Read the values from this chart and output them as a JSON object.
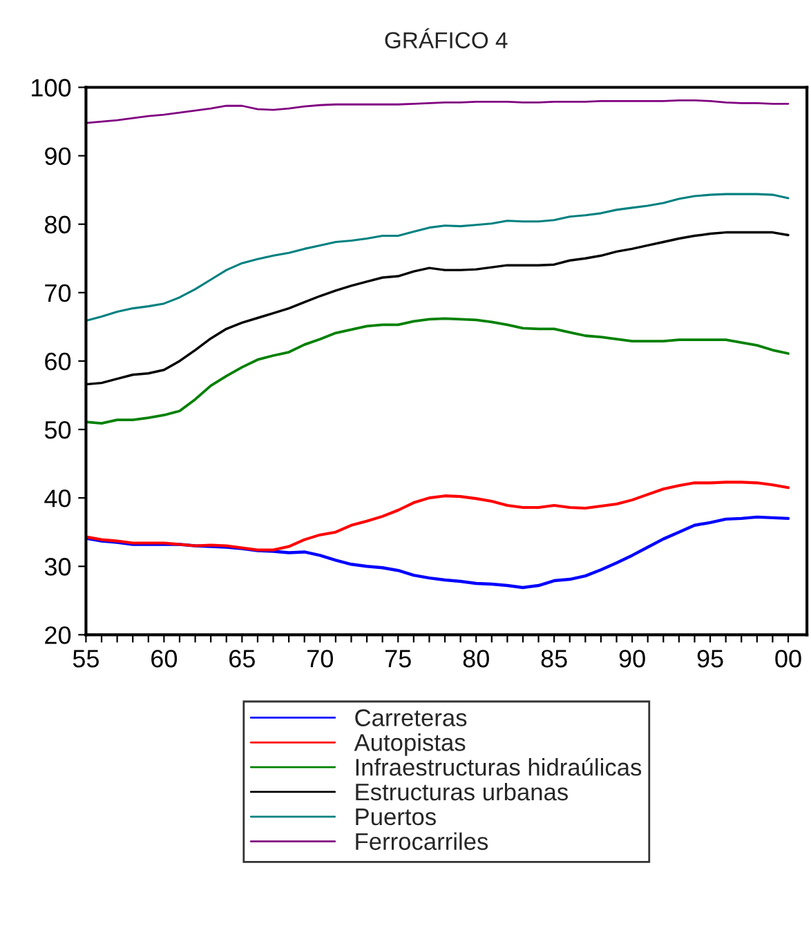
{
  "chart_data": {
    "type": "line",
    "title": "GRÁFICO 4",
    "x": [
      1955,
      1956,
      1957,
      1958,
      1959,
      1960,
      1961,
      1962,
      1963,
      1964,
      1965,
      1966,
      1967,
      1968,
      1969,
      1970,
      1971,
      1972,
      1973,
      1974,
      1975,
      1976,
      1977,
      1978,
      1979,
      1980,
      1981,
      1982,
      1983,
      1984,
      1985,
      1986,
      1987,
      1988,
      1989,
      1990,
      1991,
      1992,
      1993,
      1994,
      1995,
      1996,
      1997,
      1998,
      1999,
      2000
    ],
    "series": [
      {
        "name": "Carreteras",
        "color": "#0000ff",
        "values": [
          34.1,
          33.7,
          33.5,
          33.2,
          33.2,
          33.2,
          33.2,
          33.0,
          32.9,
          32.8,
          32.6,
          32.3,
          32.2,
          32.0,
          32.1,
          31.6,
          30.9,
          30.3,
          30.0,
          29.8,
          29.4,
          28.7,
          28.3,
          28.0,
          27.8,
          27.5,
          27.4,
          27.2,
          26.9,
          27.2,
          27.9,
          28.1,
          28.6,
          29.5,
          30.5,
          31.6,
          32.8,
          34.0,
          35.0,
          36.0,
          36.4,
          36.9,
          37.0,
          37.2,
          37.1,
          37.0
        ]
      },
      {
        "name": "Autopistas",
        "color": "#ff0000",
        "values": [
          34.3,
          33.9,
          33.7,
          33.4,
          33.4,
          33.4,
          33.2,
          33.0,
          33.1,
          33.0,
          32.7,
          32.4,
          32.4,
          32.9,
          33.9,
          34.6,
          35.0,
          36.0,
          36.6,
          37.3,
          38.2,
          39.3,
          40.0,
          40.3,
          40.2,
          39.9,
          39.5,
          38.9,
          38.6,
          38.6,
          38.9,
          38.6,
          38.5,
          38.8,
          39.1,
          39.7,
          40.5,
          41.3,
          41.8,
          42.2,
          42.2,
          42.3,
          42.3,
          42.2,
          41.9,
          41.5
        ]
      },
      {
        "name": "Infraestructuras hidraúlicas",
        "color": "#008000",
        "values": [
          51.1,
          50.9,
          51.4,
          51.4,
          51.7,
          52.1,
          52.7,
          54.4,
          56.4,
          57.8,
          59.1,
          60.2,
          60.8,
          61.3,
          62.4,
          63.2,
          64.1,
          64.6,
          65.1,
          65.3,
          65.3,
          65.8,
          66.1,
          66.2,
          66.1,
          66.0,
          65.7,
          65.3,
          64.8,
          64.7,
          64.7,
          64.2,
          63.7,
          63.5,
          63.2,
          62.9,
          62.9,
          62.9,
          63.1,
          63.1,
          63.1,
          63.1,
          62.7,
          62.3,
          61.6,
          61.1
        ]
      },
      {
        "name": "Estructuras urbanas",
        "color": "#000000",
        "values": [
          56.6,
          56.8,
          57.4,
          58.0,
          58.2,
          58.7,
          60.0,
          61.6,
          63.3,
          64.7,
          65.6,
          66.3,
          67.0,
          67.7,
          68.6,
          69.5,
          70.3,
          71.0,
          71.6,
          72.2,
          72.4,
          73.1,
          73.6,
          73.3,
          73.3,
          73.4,
          73.7,
          74.0,
          74.0,
          74.0,
          74.1,
          74.7,
          75.0,
          75.4,
          76.0,
          76.4,
          76.9,
          77.4,
          77.9,
          78.3,
          78.6,
          78.8,
          78.8,
          78.8,
          78.8,
          78.4
        ]
      },
      {
        "name": "Puertos",
        "color": "#008080",
        "values": [
          65.9,
          66.5,
          67.2,
          67.7,
          68.0,
          68.4,
          69.3,
          70.5,
          71.9,
          73.3,
          74.3,
          74.9,
          75.4,
          75.8,
          76.4,
          76.9,
          77.4,
          77.6,
          77.9,
          78.3,
          78.3,
          78.9,
          79.5,
          79.8,
          79.7,
          79.9,
          80.1,
          80.5,
          80.4,
          80.4,
          80.6,
          81.1,
          81.3,
          81.6,
          82.1,
          82.4,
          82.7,
          83.1,
          83.7,
          84.1,
          84.3,
          84.4,
          84.4,
          84.4,
          84.3,
          83.8
        ]
      },
      {
        "name": "Ferrocarriles",
        "color": "#800080",
        "values": [
          94.8,
          95.0,
          95.2,
          95.5,
          95.8,
          96.0,
          96.3,
          96.6,
          96.9,
          97.3,
          97.3,
          96.8,
          96.7,
          96.9,
          97.2,
          97.4,
          97.5,
          97.5,
          97.5,
          97.5,
          97.5,
          97.6,
          97.7,
          97.8,
          97.8,
          97.9,
          97.9,
          97.9,
          97.8,
          97.8,
          97.9,
          97.9,
          97.9,
          98.0,
          98.0,
          98.0,
          98.0,
          98.0,
          98.1,
          98.1,
          98.0,
          97.8,
          97.7,
          97.7,
          97.6,
          97.6
        ]
      }
    ],
    "xlim": [
      1955,
      2001.2
    ],
    "xticks": [
      {
        "value": 1955,
        "label": "55"
      },
      {
        "value": 1956,
        "label": null
      },
      {
        "value": 1957,
        "label": null
      },
      {
        "value": 1958,
        "label": null
      },
      {
        "value": 1959,
        "label": null
      },
      {
        "value": 1960,
        "label": "60"
      },
      {
        "value": 1961,
        "label": null
      },
      {
        "value": 1962,
        "label": null
      },
      {
        "value": 1963,
        "label": null
      },
      {
        "value": 1964,
        "label": null
      },
      {
        "value": 1965,
        "label": "65"
      },
      {
        "value": 1966,
        "label": null
      },
      {
        "value": 1967,
        "label": null
      },
      {
        "value": 1968,
        "label": null
      },
      {
        "value": 1969,
        "label": null
      },
      {
        "value": 1970,
        "label": "70"
      },
      {
        "value": 1971,
        "label": null
      },
      {
        "value": 1972,
        "label": null
      },
      {
        "value": 1973,
        "label": null
      },
      {
        "value": 1974,
        "label": null
      },
      {
        "value": 1975,
        "label": "75"
      },
      {
        "value": 1976,
        "label": null
      },
      {
        "value": 1977,
        "label": null
      },
      {
        "value": 1978,
        "label": null
      },
      {
        "value": 1979,
        "label": null
      },
      {
        "value": 1980,
        "label": "80"
      },
      {
        "value": 1981,
        "label": null
      },
      {
        "value": 1982,
        "label": null
      },
      {
        "value": 1983,
        "label": null
      },
      {
        "value": 1984,
        "label": null
      },
      {
        "value": 1985,
        "label": "85"
      },
      {
        "value": 1986,
        "label": null
      },
      {
        "value": 1987,
        "label": null
      },
      {
        "value": 1988,
        "label": null
      },
      {
        "value": 1989,
        "label": null
      },
      {
        "value": 1990,
        "label": "90"
      },
      {
        "value": 1991,
        "label": null
      },
      {
        "value": 1992,
        "label": null
      },
      {
        "value": 1993,
        "label": null
      },
      {
        "value": 1994,
        "label": null
      },
      {
        "value": 1995,
        "label": "95"
      },
      {
        "value": 1996,
        "label": null
      },
      {
        "value": 1997,
        "label": null
      },
      {
        "value": 1998,
        "label": null
      },
      {
        "value": 1999,
        "label": null
      },
      {
        "value": 2000,
        "label": "00"
      }
    ],
    "ylim": [
      20,
      100
    ],
    "yticks": [
      20,
      30,
      40,
      50,
      60,
      70,
      80,
      90,
      100
    ],
    "grid": false,
    "legend": "bottom",
    "line_style": "solid",
    "marker": "none"
  }
}
